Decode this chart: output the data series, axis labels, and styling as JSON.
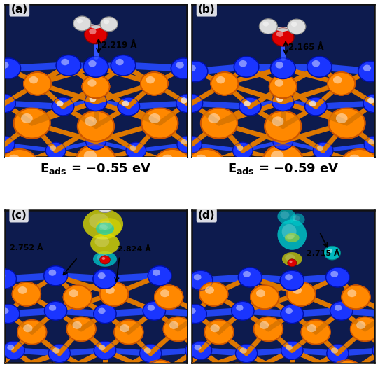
{
  "fig_width": 5.5,
  "fig_height": 5.24,
  "dpi": 100,
  "bg_color": "#ffffff",
  "panel_bg": "#0d1b4e",
  "border_color": "#111111",
  "colors": {
    "blue_atom": "#1a35ff",
    "blue_atom_dark": "#0010aa",
    "orange_atom": "#ff8800",
    "orange_atom_dark": "#cc5500",
    "red_atom": "#dd0000",
    "red_atom_dark": "#880000",
    "white_atom": "#dddddd",
    "white_atom_dark": "#888888",
    "cyan_iso": "#00cccc",
    "yellow_iso": "#dddd00",
    "bond_blue": "#2244ee",
    "bond_orange": "#dd7700"
  },
  "eads_a": "E$_\\mathrm{ads}$ = −0.55 eV",
  "eads_b": "E$_\\mathrm{ads}$ = −0.59 eV",
  "dist_a": "2.219 Å",
  "dist_b": "2.165 Å",
  "dist_c1": "2.752 Å",
  "dist_c2": "2.824 Å",
  "dist_d": "2.715 Å"
}
